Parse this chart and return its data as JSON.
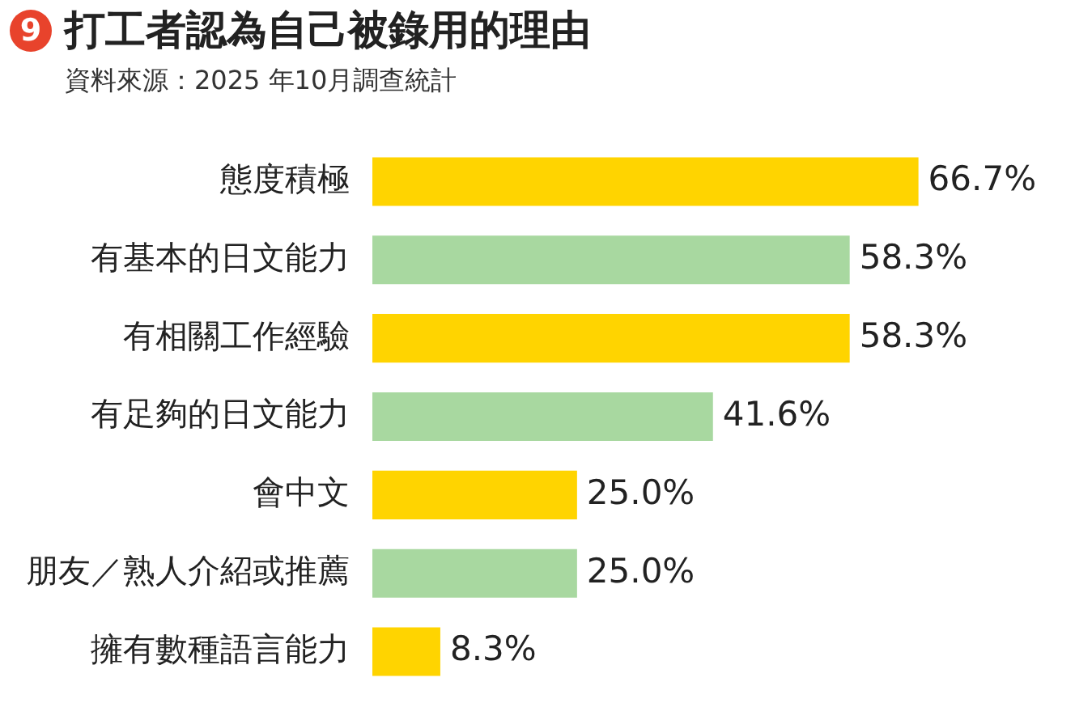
{
  "chart_data": {
    "type": "bar",
    "orientation": "horizontal",
    "title": "打工者認為自己被錄用的理由",
    "subtitle": "資料來源：2025 年10月調查統計",
    "annotations": [
      "9"
    ],
    "categories": [
      "態度積極",
      "有基本的日文能力",
      "有相關工作經驗",
      "有足夠的日文能力",
      "會中文",
      "朋友／熟人介紹或推薦",
      "擁有數種語言能力"
    ],
    "values": [
      66.7,
      58.3,
      58.3,
      41.6,
      25.0,
      25.0,
      8.3
    ],
    "value_labels": [
      "66.7%",
      "58.3%",
      "58.3%",
      "41.6%",
      "25.0%",
      "25.0%",
      "8.3%"
    ],
    "colors": [
      "#ffd400",
      "#a8d8a0",
      "#ffd400",
      "#a8d8a0",
      "#ffd400",
      "#a8d8a0",
      "#ffd400"
    ],
    "legend": false
  }
}
